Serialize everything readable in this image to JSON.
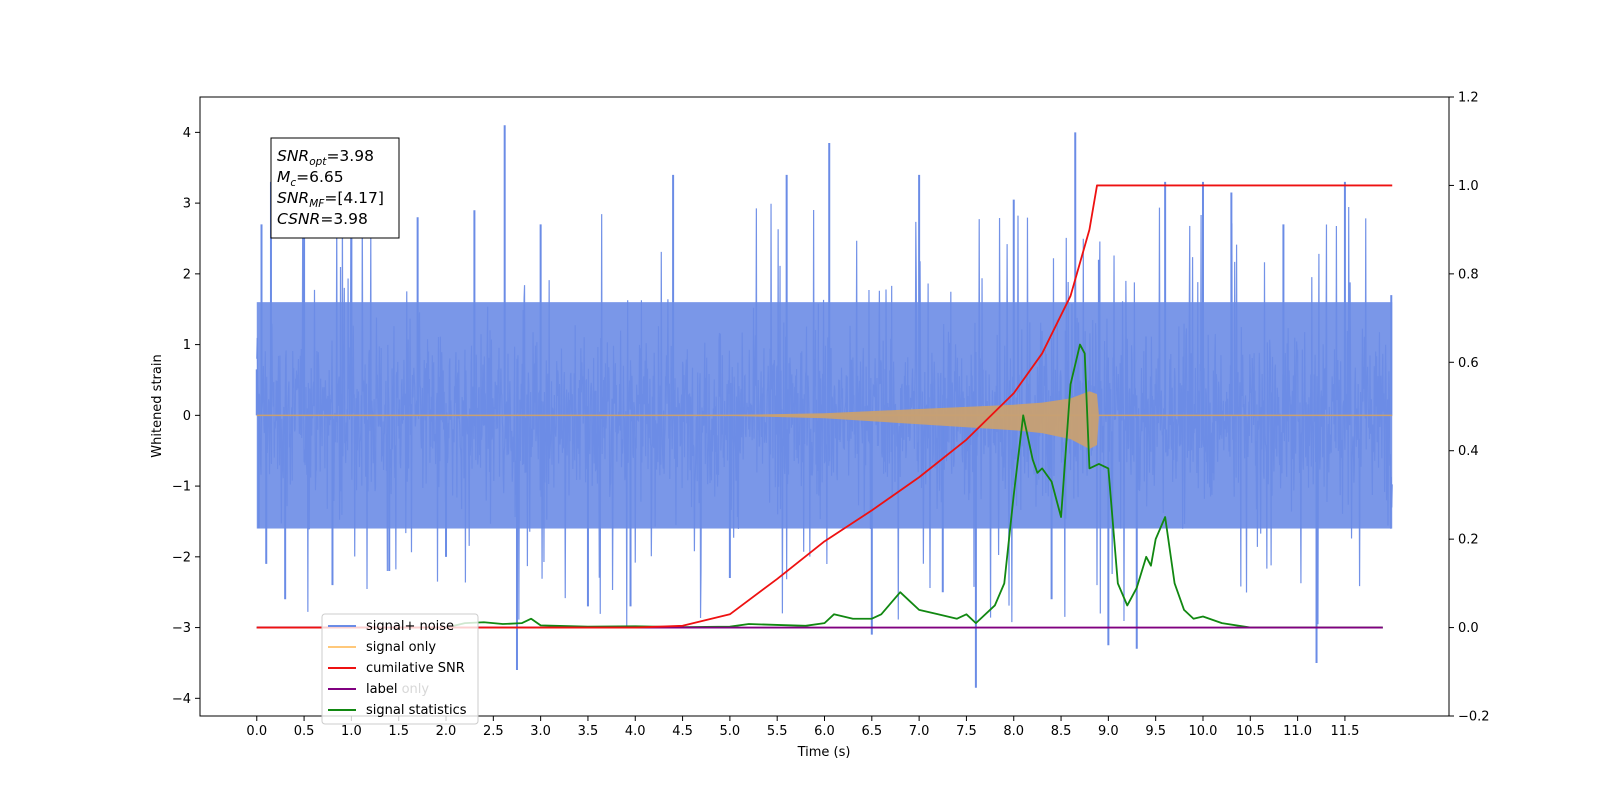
{
  "chart_data": {
    "type": "line",
    "title": "",
    "xlabel": "Time (s)",
    "ylabel": "Whitened strain",
    "y2label": "",
    "xlim": [
      -0.6,
      12.6
    ],
    "ylim": [
      -4.25,
      4.5
    ],
    "y2lim": [
      -0.2,
      1.2
    ],
    "x_ticks": [
      "0.0",
      "0.5",
      "1.0",
      "1.5",
      "2.0",
      "2.5",
      "3.0",
      "3.5",
      "4.0",
      "4.5",
      "5.0",
      "5.5",
      "6.0",
      "6.5",
      "7.0",
      "7.5",
      "8.0",
      "8.5",
      "9.0",
      "9.5",
      "10.0",
      "10.5",
      "11.0",
      "11.5"
    ],
    "y_ticks": [
      "4",
      "3",
      "2",
      "1",
      "0",
      "−1",
      "−2",
      "−3",
      "−4"
    ],
    "y2_ticks": [
      "1.2",
      "1.0",
      "0.8",
      "0.6",
      "0.4",
      "0.2",
      "0.0",
      "−0.2"
    ],
    "grid": false,
    "legend_position": "lower-left",
    "annotation": {
      "lines": [
        {
          "base": "SNR",
          "sub": "opt",
          "rest": "=3.98"
        },
        {
          "base": "M",
          "sub": "c",
          "rest": "=6.65"
        },
        {
          "base": "SNR",
          "sub": "MF",
          "rest": "=[4.17]"
        },
        {
          "base": "CSNR",
          "sub": "",
          "rest": "=3.98"
        }
      ]
    },
    "noise_envelope": {
      "x": [
        0,
        12
      ],
      "y_low": -1.6,
      "y_high": 1.6,
      "spike_range": [
        -3.9,
        4.15
      ],
      "color": "#6b8ce6"
    },
    "series": [
      {
        "name": "signal+ noise",
        "axis": "left",
        "color": "#6b8ce6",
        "x": [
          0.0,
          0.02,
          0.05,
          0.1,
          0.15,
          0.3,
          0.5,
          0.8,
          1.0,
          1.4,
          1.7,
          2.0,
          2.3,
          2.62,
          2.75,
          3.0,
          3.5,
          3.95,
          4.4,
          5.0,
          5.6,
          6.05,
          6.5,
          7.0,
          7.25,
          7.6,
          8.0,
          8.4,
          8.65,
          8.9,
          9.0,
          9.3,
          9.6,
          10.0,
          10.3,
          10.85,
          11.2,
          11.5,
          11.99
        ],
        "values": [
          0.65,
          -1.6,
          2.7,
          -2.1,
          3.3,
          -2.6,
          2.9,
          -2.4,
          3.1,
          -2.2,
          2.8,
          -2.0,
          2.9,
          4.1,
          -3.6,
          2.7,
          -2.7,
          -2.7,
          3.4,
          -2.3,
          3.4,
          3.85,
          -3.1,
          3.4,
          -2.5,
          -3.85,
          3.05,
          -2.6,
          4.0,
          2.2,
          -3.25,
          -3.3,
          3.3,
          3.3,
          3.15,
          2.7,
          -3.5,
          3.3,
          1.7
        ]
      },
      {
        "name": "signal only",
        "axis": "left",
        "color": "#c8a072",
        "envelope_x": [
          0,
          5.0,
          6.0,
          7.0,
          7.5,
          8.0,
          8.3,
          8.6,
          8.8,
          8.88,
          8.9,
          12.0
        ],
        "envelope_amp": [
          0,
          0.005,
          0.03,
          0.09,
          0.12,
          0.15,
          0.18,
          0.24,
          0.34,
          0.3,
          0,
          0
        ]
      },
      {
        "name": "cumilative SNR",
        "axis": "right",
        "color": "#ee1111",
        "x": [
          0.0,
          4.0,
          4.5,
          5.0,
          5.5,
          6.0,
          6.5,
          7.0,
          7.5,
          8.0,
          8.3,
          8.6,
          8.8,
          8.88,
          8.9,
          12.0
        ],
        "values": [
          0.0,
          0.0,
          0.004,
          0.03,
          0.11,
          0.195,
          0.265,
          0.34,
          0.425,
          0.53,
          0.62,
          0.75,
          0.9,
          1.0,
          1.0,
          1.0
        ]
      },
      {
        "name": "label",
        "axis": "right",
        "color": "#800080",
        "x": [
          0.0,
          11.9
        ],
        "values": [
          0.0,
          0.0
        ]
      },
      {
        "name": "signal statistics",
        "axis": "right",
        "color": "#118811",
        "x": [
          0.0,
          2.0,
          2.2,
          2.4,
          2.6,
          2.8,
          2.9,
          3.0,
          3.5,
          4.0,
          4.5,
          5.0,
          5.2,
          5.5,
          5.8,
          6.0,
          6.1,
          6.3,
          6.5,
          6.6,
          6.8,
          6.9,
          7.0,
          7.2,
          7.4,
          7.5,
          7.6,
          7.8,
          7.9,
          8.0,
          8.1,
          8.2,
          8.25,
          8.3,
          8.4,
          8.5,
          8.6,
          8.7,
          8.75,
          8.8,
          8.9,
          9.0,
          9.1,
          9.2,
          9.3,
          9.4,
          9.45,
          9.5,
          9.6,
          9.7,
          9.8,
          9.9,
          10.0,
          10.2,
          10.5,
          11.9
        ],
        "values": [
          0.0,
          0.0,
          0.01,
          0.012,
          0.008,
          0.01,
          0.02,
          0.005,
          0.002,
          0.003,
          0.001,
          0.002,
          0.008,
          0.006,
          0.004,
          0.01,
          0.03,
          0.02,
          0.02,
          0.03,
          0.08,
          0.06,
          0.04,
          0.03,
          0.02,
          0.03,
          0.01,
          0.05,
          0.1,
          0.3,
          0.48,
          0.38,
          0.35,
          0.36,
          0.33,
          0.25,
          0.55,
          0.64,
          0.62,
          0.36,
          0.37,
          0.36,
          0.1,
          0.05,
          0.09,
          0.16,
          0.14,
          0.2,
          0.25,
          0.1,
          0.04,
          0.02,
          0.025,
          0.01,
          0.0,
          0.0
        ]
      }
    ],
    "legend": [
      {
        "label": "signal+ noise",
        "color": "#6b8ce6"
      },
      {
        "label": "signal only",
        "color": "#ffc87a"
      },
      {
        "label": "cumilative SNR",
        "color": "#ee1111"
      },
      {
        "label": "label",
        "color": "#800080"
      },
      {
        "label": "signal statistics",
        "color": "#118811"
      }
    ],
    "legend_overlap_text": [
      "label only",
      "signal statistics"
    ]
  }
}
